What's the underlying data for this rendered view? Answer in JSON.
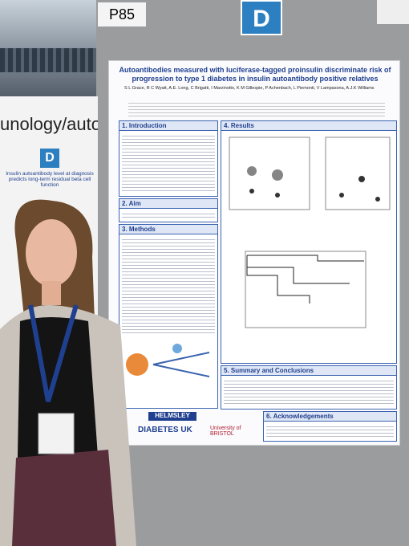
{
  "board": {
    "number": "P85",
    "letter": "D"
  },
  "left_poster": {
    "banner": "unology/autoim",
    "letter": "D",
    "title": "Insulin autoantibody level at diagnosis predicts long-term residual beta cell function"
  },
  "poster": {
    "title": "Autoantibodies measured with luciferase-tagged proinsulin discriminate risk of progression to type 1 diabetes in insulin autoantibody positive relatives",
    "authors": "S L Grace, R C Wyatt, A.E. Long, C Brigatti, I Marzinotto, K M Gillespie, P Achenbach, L Piemonti, V Lampasona, A.J.K Williams",
    "sections": [
      {
        "heading": "1. Introduction"
      },
      {
        "heading": "2. Aim"
      },
      {
        "heading": "3. Methods"
      },
      {
        "heading": "4. Results"
      },
      {
        "heading": "5. Summary and Conclusions"
      },
      {
        "heading": "6. Acknowledgements"
      }
    ],
    "logos": [
      "HELMSLEY",
      "DIABETES UK",
      "University of BRISTOL"
    ]
  }
}
